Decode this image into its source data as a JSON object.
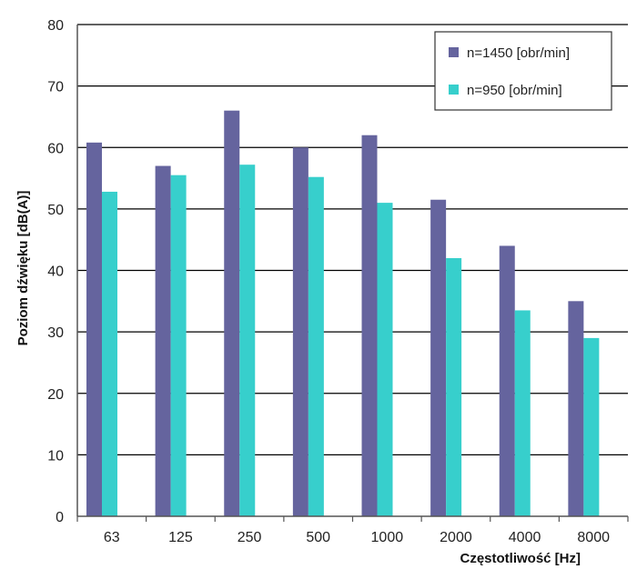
{
  "chart_data": {
    "type": "bar",
    "title": "",
    "xlabel": "Częstotliwość [Hz]",
    "ylabel": "Poziom dźwięku [dB(A)]",
    "ylim": [
      0,
      80
    ],
    "yticks": [
      "0",
      "10",
      "20",
      "30",
      "40",
      "50",
      "60",
      "70",
      "80"
    ],
    "grid": true,
    "legend_position": "top-right",
    "categories": [
      "63",
      "125",
      "250",
      "500",
      "1000",
      "2000",
      "4000",
      "8000"
    ],
    "series": [
      {
        "name": "n=1450 [obr/min]",
        "color": "#65649e",
        "values": [
          60.8,
          57,
          66,
          60,
          62,
          51.5,
          44,
          35
        ]
      },
      {
        "name": "n=950 [obr/min]",
        "color": "#37cfcc",
        "values": [
          52.8,
          55.5,
          57.2,
          55.2,
          51,
          42,
          33.5,
          29
        ]
      }
    ]
  }
}
